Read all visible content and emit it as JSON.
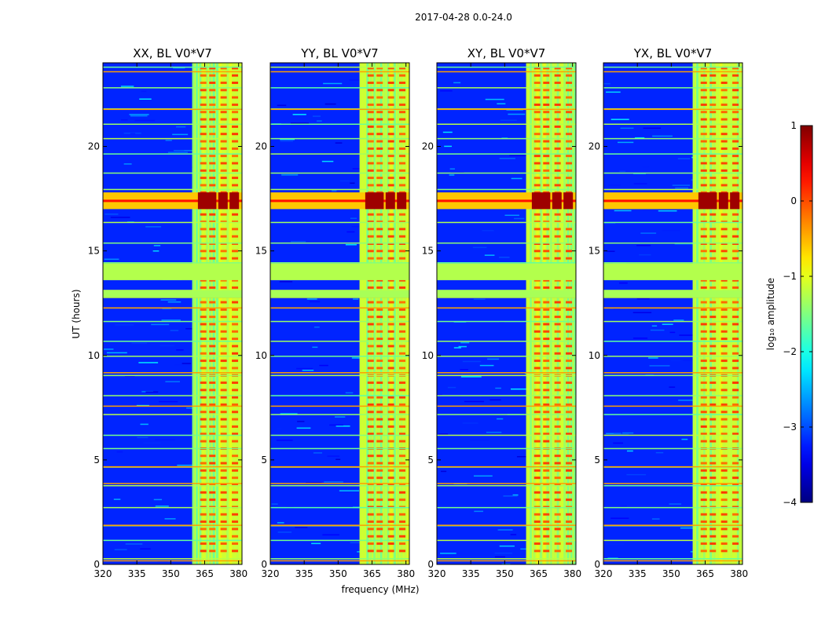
{
  "chart_data": {
    "type": "heatmap",
    "suptitle": "2017-04-28 0.0-24.0",
    "xlabel": "frequency (MHz)",
    "ylabel": "UT (hours)",
    "xlim": [
      320,
      381.5
    ],
    "ylim": [
      0,
      24
    ],
    "xticks": [
      320,
      335,
      350,
      365,
      380
    ],
    "yticks": [
      0,
      5,
      10,
      15,
      20
    ],
    "panels": [
      {
        "title": "XX, BL V0*V7",
        "pol": "XX",
        "rfi_band_start_mhz": 359.5
      },
      {
        "title": "YY, BL V0*V7",
        "pol": "YY",
        "rfi_band_start_mhz": 359.5
      },
      {
        "title": "XY, BL V0*V7",
        "pol": "XY",
        "rfi_band_start_mhz": 359.5
      },
      {
        "title": "YX, BL V0*V7",
        "pol": "YX",
        "rfi_band_start_mhz": 359.5
      }
    ],
    "rfi_channels_mhz": [
      364.5,
      368.5,
      373.5,
      378.5
    ],
    "strong_burst_hours": [
      17.0,
      17.8
    ],
    "flagged_interval_hours": [
      13.6,
      14.4
    ],
    "colorbar": {
      "label": "log₁₀ amplitude",
      "min": -4,
      "max": 1,
      "ticks": [
        "1",
        "0",
        "−1",
        "−2",
        "−3",
        "−4"
      ],
      "tick_values": [
        1,
        0,
        -1,
        -2,
        -3,
        -4
      ],
      "colormap": "jet"
    }
  }
}
